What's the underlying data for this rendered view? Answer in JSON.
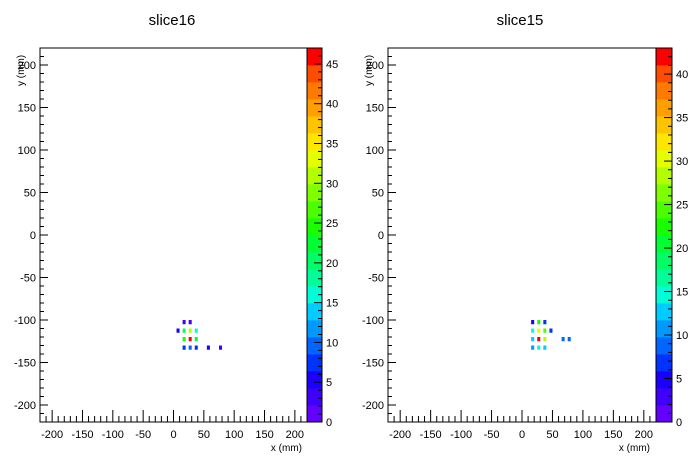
{
  "chart_data": [
    {
      "type": "heatmap",
      "title": "slice16",
      "xlabel": "x (mm)",
      "ylabel": "y (mm)",
      "xlim": [
        -220,
        220
      ],
      "ylim": [
        -220,
        220
      ],
      "x_ticks": [
        -200,
        -150,
        -100,
        -50,
        0,
        50,
        100,
        150,
        200
      ],
      "y_ticks": [
        -200,
        -150,
        -100,
        -50,
        0,
        50,
        100,
        150,
        200
      ],
      "colorbar": {
        "min": 0,
        "max": 47,
        "ticks": [
          0,
          5,
          10,
          15,
          20,
          25,
          30,
          35,
          40,
          45
        ]
      },
      "cell_size": [
        5,
        5
      ],
      "cells": [
        {
          "x": 17.5,
          "y": -102.5,
          "z": 4
        },
        {
          "x": 27.5,
          "y": -102.5,
          "z": 4
        },
        {
          "x": 7.5,
          "y": -112.5,
          "z": 6
        },
        {
          "x": 17.5,
          "y": -112.5,
          "z": 20
        },
        {
          "x": 27.5,
          "y": -112.5,
          "z": 30
        },
        {
          "x": 37.5,
          "y": -112.5,
          "z": 17
        },
        {
          "x": 17.5,
          "y": -122.5,
          "z": 24
        },
        {
          "x": 27.5,
          "y": -122.5,
          "z": 46
        },
        {
          "x": 37.5,
          "y": -122.5,
          "z": 22
        },
        {
          "x": 17.5,
          "y": -132.5,
          "z": 8
        },
        {
          "x": 27.5,
          "y": -132.5,
          "z": 10
        },
        {
          "x": 37.5,
          "y": -132.5,
          "z": 7
        },
        {
          "x": 57.5,
          "y": -132.5,
          "z": 5
        },
        {
          "x": 77.5,
          "y": -132.5,
          "z": 3
        }
      ]
    },
    {
      "type": "heatmap",
      "title": "slice15",
      "xlabel": "x (mm)",
      "ylabel": "y (mm)",
      "xlim": [
        -220,
        220
      ],
      "ylim": [
        -220,
        220
      ],
      "x_ticks": [
        -200,
        -150,
        -100,
        -50,
        0,
        50,
        100,
        150,
        200
      ],
      "y_ticks": [
        -200,
        -150,
        -100,
        -50,
        0,
        50,
        100,
        150,
        200
      ],
      "colorbar": {
        "min": 0,
        "max": 43,
        "ticks": [
          0,
          5,
          10,
          15,
          20,
          25,
          30,
          35,
          40
        ]
      },
      "cell_size": [
        5,
        5
      ],
      "cells": [
        {
          "x": 17.5,
          "y": -102.5,
          "z": 5
        },
        {
          "x": 27.5,
          "y": -102.5,
          "z": 22
        },
        {
          "x": 37.5,
          "y": -102.5,
          "z": 6
        },
        {
          "x": 17.5,
          "y": -112.5,
          "z": 14
        },
        {
          "x": 27.5,
          "y": -112.5,
          "z": 30
        },
        {
          "x": 37.5,
          "y": -112.5,
          "z": 24
        },
        {
          "x": 47.5,
          "y": -112.5,
          "z": 7
        },
        {
          "x": 17.5,
          "y": -122.5,
          "z": 12
        },
        {
          "x": 27.5,
          "y": -122.5,
          "z": 42
        },
        {
          "x": 37.5,
          "y": -122.5,
          "z": 28
        },
        {
          "x": 67.5,
          "y": -122.5,
          "z": 8
        },
        {
          "x": 77.5,
          "y": -122.5,
          "z": 8
        },
        {
          "x": 17.5,
          "y": -132.5,
          "z": 11
        },
        {
          "x": 27.5,
          "y": -132.5,
          "z": 14
        },
        {
          "x": 37.5,
          "y": -132.5,
          "z": 13
        }
      ]
    }
  ]
}
